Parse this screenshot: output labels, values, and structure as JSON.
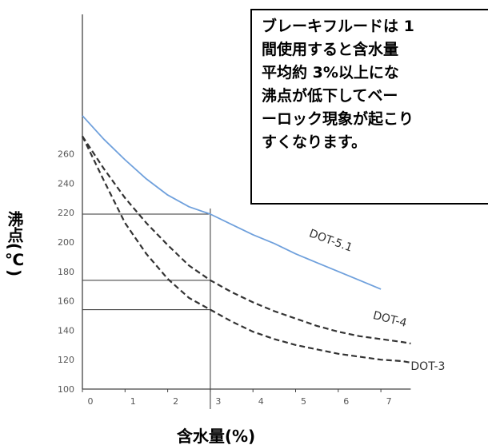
{
  "note_lines": [
    "ブレーキフルードは 1",
    "間使用すると含水量",
    "平均約 3%以上にな",
    "沸点が低下してベー",
    "ーロック現象が起こり",
    "すくなります。"
  ],
  "chart_data": {
    "type": "line",
    "title": "",
    "xlabel": "含水量(%)",
    "ylabel": "沸点(℃)",
    "xlim": [
      0,
      7.7
    ],
    "ylim": [
      100,
      290
    ],
    "x_ticks": [
      "0",
      "1",
      "2",
      "3",
      "4",
      "5",
      "6",
      "7"
    ],
    "y_ticks": [
      "100",
      "120",
      "140",
      "160",
      "180",
      "200",
      "220",
      "240",
      "260"
    ],
    "x": [
      0,
      0.5,
      1,
      1.5,
      2,
      2.5,
      3,
      3.5,
      4,
      4.5,
      5,
      5.5,
      6,
      6.5,
      7,
      7.5,
      7.7
    ],
    "series": [
      {
        "name": "DOT-5.1",
        "style": "solid",
        "color": "#6fa0dc",
        "values": [
          286,
          270,
          256,
          243,
          232,
          224,
          219,
          212,
          205,
          199,
          192,
          186,
          180,
          174,
          168,
          null,
          null
        ]
      },
      {
        "name": "DOT-4",
        "style": "dashed",
        "color": "#333333",
        "values": [
          272,
          250,
          230,
          213,
          198,
          184,
          174,
          166,
          159,
          153,
          148,
          143,
          139,
          136,
          134,
          132,
          131
        ]
      },
      {
        "name": "DOT-3",
        "style": "dashed",
        "color": "#333333",
        "values": [
          272,
          242,
          213,
          192,
          175,
          162,
          154,
          146,
          139,
          134,
          130,
          127,
          124,
          122,
          120,
          119,
          118
        ]
      }
    ],
    "reference_lines": {
      "x": 3,
      "y": [
        219,
        174,
        154
      ]
    }
  }
}
